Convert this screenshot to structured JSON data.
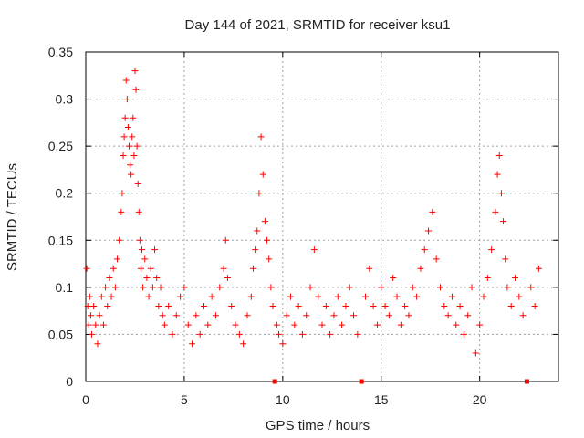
{
  "chart_data": {
    "type": "scatter",
    "title": "Day 144 of 2021, SRMTID for receiver ksu1",
    "xlabel": "GPS time / hours",
    "ylabel": "SRMTID / TECUs",
    "xlim": [
      0,
      24
    ],
    "ylim": [
      0,
      0.35
    ],
    "x_ticks": [
      0,
      5,
      10,
      15,
      20
    ],
    "x_tick_labels": [
      "0",
      "5",
      "10",
      "15",
      "20"
    ],
    "y_ticks": [
      0,
      0.05,
      0.1,
      0.15,
      0.2,
      0.25,
      0.3,
      0.35
    ],
    "y_tick_labels": [
      "0",
      "0.05",
      "0.1",
      "0.15",
      "0.2",
      "0.25",
      "0.3",
      "0.35"
    ],
    "grid": true,
    "marker": "+",
    "series_color": "#ff0000",
    "data_gaps_hours": [
      9.6,
      14.0,
      22.4
    ],
    "x": [
      0.05,
      0.1,
      0.15,
      0.2,
      0.25,
      0.3,
      0.4,
      0.5,
      0.6,
      0.7,
      0.8,
      0.9,
      1.0,
      1.1,
      1.2,
      1.3,
      1.4,
      1.5,
      1.6,
      1.7,
      1.8,
      1.85,
      1.9,
      1.95,
      2.0,
      2.05,
      2.1,
      2.15,
      2.2,
      2.25,
      2.3,
      2.35,
      2.4,
      2.45,
      2.5,
      2.55,
      2.6,
      2.65,
      2.7,
      2.75,
      2.8,
      2.85,
      2.9,
      3.0,
      3.1,
      3.2,
      3.3,
      3.4,
      3.5,
      3.6,
      3.7,
      3.8,
      3.9,
      4.0,
      4.2,
      4.4,
      4.6,
      4.8,
      5.0,
      5.2,
      5.4,
      5.6,
      5.8,
      6.0,
      6.2,
      6.4,
      6.6,
      6.8,
      7.0,
      7.1,
      7.2,
      7.4,
      7.6,
      7.8,
      8.0,
      8.2,
      8.4,
      8.5,
      8.6,
      8.7,
      8.8,
      8.9,
      9.0,
      9.1,
      9.2,
      9.3,
      9.4,
      9.5,
      9.7,
      9.8,
      10.0,
      10.2,
      10.4,
      10.6,
      10.8,
      11.0,
      11.2,
      11.4,
      11.6,
      11.8,
      12.0,
      12.2,
      12.4,
      12.6,
      12.8,
      13.0,
      13.2,
      13.4,
      13.6,
      13.8,
      14.2,
      14.4,
      14.6,
      14.8,
      15.0,
      15.2,
      15.4,
      15.6,
      15.8,
      16.0,
      16.2,
      16.4,
      16.6,
      16.8,
      17.0,
      17.2,
      17.4,
      17.6,
      17.8,
      18.0,
      18.2,
      18.4,
      18.6,
      18.8,
      19.0,
      19.2,
      19.4,
      19.6,
      19.8,
      20.0,
      20.2,
      20.4,
      20.6,
      20.8,
      20.9,
      21.0,
      21.1,
      21.2,
      21.3,
      21.4,
      21.6,
      21.8,
      22.0,
      22.2,
      22.6,
      22.8,
      23.0
    ],
    "y": [
      0.12,
      0.08,
      0.06,
      0.09,
      0.07,
      0.05,
      0.08,
      0.06,
      0.04,
      0.07,
      0.09,
      0.06,
      0.1,
      0.08,
      0.11,
      0.09,
      0.12,
      0.1,
      0.13,
      0.15,
      0.18,
      0.2,
      0.24,
      0.26,
      0.28,
      0.32,
      0.3,
      0.27,
      0.25,
      0.23,
      0.22,
      0.26,
      0.28,
      0.24,
      0.33,
      0.31,
      0.25,
      0.21,
      0.18,
      0.15,
      0.12,
      0.14,
      0.1,
      0.13,
      0.11,
      0.09,
      0.12,
      0.1,
      0.14,
      0.11,
      0.08,
      0.1,
      0.07,
      0.06,
      0.08,
      0.05,
      0.07,
      0.09,
      0.1,
      0.06,
      0.04,
      0.07,
      0.05,
      0.08,
      0.06,
      0.09,
      0.07,
      0.1,
      0.12,
      0.15,
      0.11,
      0.08,
      0.06,
      0.05,
      0.04,
      0.07,
      0.09,
      0.12,
      0.14,
      0.16,
      0.2,
      0.26,
      0.22,
      0.17,
      0.15,
      0.13,
      0.1,
      0.08,
      0.06,
      0.05,
      0.04,
      0.07,
      0.09,
      0.06,
      0.08,
      0.05,
      0.07,
      0.1,
      0.14,
      0.09,
      0.06,
      0.08,
      0.05,
      0.07,
      0.09,
      0.06,
      0.08,
      0.1,
      0.07,
      0.05,
      0.09,
      0.12,
      0.08,
      0.06,
      0.1,
      0.08,
      0.07,
      0.11,
      0.09,
      0.06,
      0.08,
      0.07,
      0.1,
      0.09,
      0.12,
      0.14,
      0.16,
      0.18,
      0.13,
      0.1,
      0.08,
      0.07,
      0.09,
      0.06,
      0.08,
      0.05,
      0.07,
      0.1,
      0.03,
      0.06,
      0.09,
      0.11,
      0.14,
      0.18,
      0.22,
      0.24,
      0.2,
      0.17,
      0.13,
      0.1,
      0.08,
      0.11,
      0.09,
      0.07,
      0.1,
      0.08,
      0.12
    ]
  }
}
